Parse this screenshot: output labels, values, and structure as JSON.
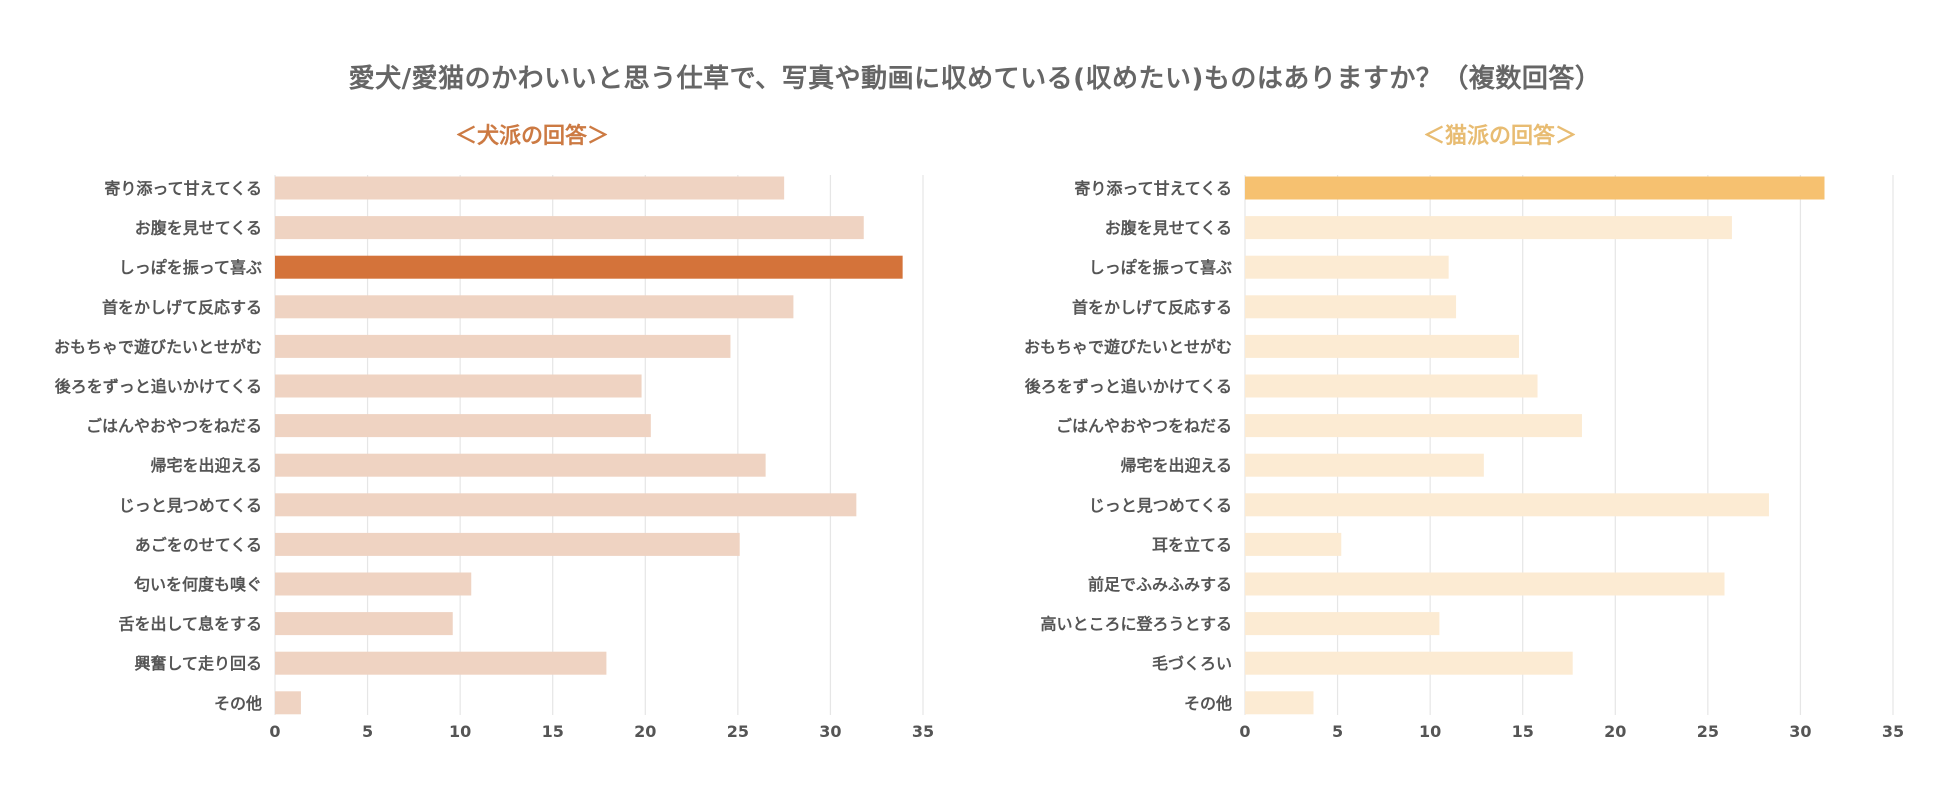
{
  "title": "愛犬/愛猫のかわいいと思う仕草で、写真や動画に収めている(収めたい)ものはありますか？（複数回答）",
  "chart_data": [
    {
      "type": "bar",
      "orientation": "horizontal",
      "subtitle": "＜犬派の回答＞",
      "color": "#efd3c2",
      "highlight_color": "#d4733a",
      "highlight_index": 2,
      "title_color": "#cc7a43",
      "categories": [
        "寄り添って甘えてくる",
        "お腹を見せてくる",
        "しっぽを振って喜ぶ",
        "首をかしげて反応する",
        "おもちゃで遊びたいとせがむ",
        "後ろをずっと追いかけてくる",
        "ごはんやおやつをねだる",
        "帰宅を出迎える",
        "じっと見つめてくる",
        "あごをのせてくる",
        "匂いを何度も嗅ぐ",
        "舌を出して息をする",
        "興奮して走り回る",
        "その他"
      ],
      "values": [
        27.5,
        31.8,
        33.9,
        28.0,
        24.6,
        19.8,
        20.3,
        26.5,
        31.4,
        25.1,
        10.6,
        9.6,
        17.9,
        1.4
      ],
      "xlim": [
        0,
        35
      ],
      "xticks": [
        0,
        5,
        10,
        15,
        20,
        25,
        30,
        35
      ],
      "grid": true
    },
    {
      "type": "bar",
      "orientation": "horizontal",
      "subtitle": "＜猫派の回答＞",
      "color": "#fcebd3",
      "highlight_color": "#f6c170",
      "highlight_index": 0,
      "title_color": "#e8bc72",
      "categories": [
        "寄り添って甘えてくる",
        "お腹を見せてくる",
        "しっぽを振って喜ぶ",
        "首をかしげて反応する",
        "おもちゃで遊びたいとせがむ",
        "後ろをずっと追いかけてくる",
        "ごはんやおやつをねだる",
        "帰宅を出迎える",
        "じっと見つめてくる",
        "耳を立てる",
        "前足でふみふみする",
        "高いところに登ろうとする",
        "毛づくろい",
        "その他"
      ],
      "values": [
        31.3,
        26.3,
        11.0,
        11.4,
        14.8,
        15.8,
        18.2,
        12.9,
        28.3,
        5.2,
        25.9,
        10.5,
        17.7,
        3.7
      ],
      "xlim": [
        0,
        35
      ],
      "xticks": [
        0,
        5,
        10,
        15,
        20,
        25,
        30,
        35
      ],
      "grid": true
    }
  ]
}
